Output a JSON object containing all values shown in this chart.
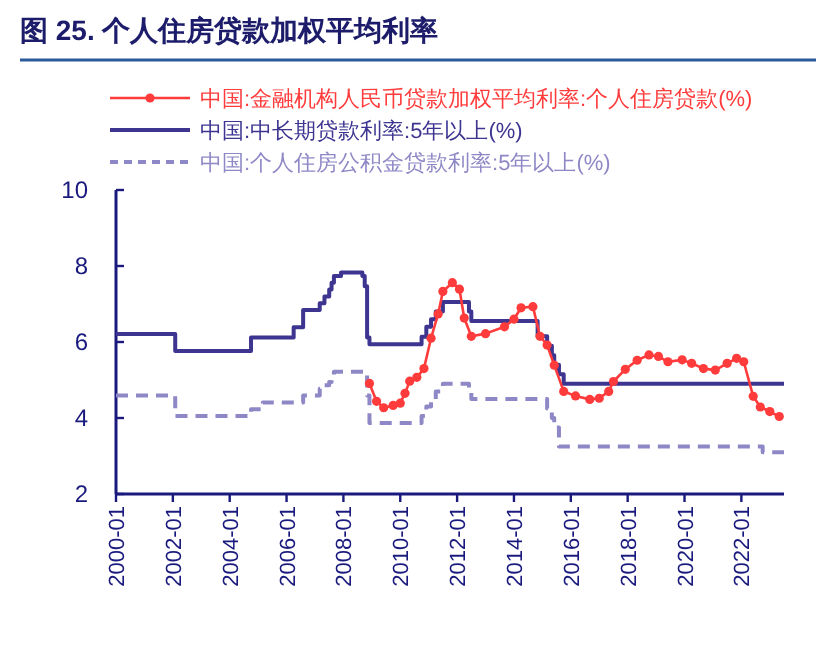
{
  "chart_data": {
    "type": "line",
    "title": "图 25. 个人住房贷款加权平均利率",
    "xlim": [
      "2000-01",
      "2023-07"
    ],
    "ylim": [
      2,
      10
    ],
    "yticks": [
      2,
      4,
      6,
      8,
      10
    ],
    "xticks": [
      "2000-01",
      "2002-01",
      "2004-01",
      "2006-01",
      "2008-01",
      "2010-01",
      "2012-01",
      "2014-01",
      "2016-01",
      "2018-01",
      "2020-01",
      "2022-01"
    ],
    "grid": false,
    "legend": "top",
    "series": [
      {
        "name": "中国:金融机构人民币贷款加权平均利率:个人住房贷款(%)",
        "type": "line",
        "color": "#ff3b3b",
        "marker": "circle",
        "line_style": "solid",
        "x": [
          "2008-12",
          "2009-03",
          "2009-06",
          "2009-10",
          "2010-01",
          "2010-03",
          "2010-05",
          "2010-08",
          "2010-11",
          "2011-02",
          "2011-05",
          "2011-07",
          "2011-11",
          "2012-02",
          "2012-04",
          "2012-07",
          "2013-01",
          "2013-09",
          "2014-01",
          "2014-04",
          "2014-09",
          "2014-12",
          "2015-03",
          "2015-06",
          "2015-10",
          "2016-03",
          "2016-09",
          "2017-01",
          "2017-05",
          "2017-07",
          "2017-12",
          "2018-05",
          "2018-10",
          "2019-02",
          "2019-06",
          "2019-12",
          "2020-04",
          "2020-09",
          "2021-02",
          "2021-07",
          "2021-11",
          "2022-02",
          "2022-06",
          "2022-09",
          "2023-01",
          "2023-05"
        ],
        "values": [
          4.91,
          4.44,
          4.27,
          4.33,
          4.39,
          4.65,
          4.97,
          5.07,
          5.3,
          6.1,
          6.74,
          7.33,
          7.56,
          7.39,
          6.63,
          6.15,
          6.22,
          6.4,
          6.6,
          6.9,
          6.93,
          6.15,
          5.92,
          5.39,
          4.7,
          4.58,
          4.49,
          4.52,
          4.7,
          4.96,
          5.28,
          5.52,
          5.66,
          5.62,
          5.48,
          5.53,
          5.44,
          5.3,
          5.26,
          5.44,
          5.57,
          5.48,
          4.57,
          4.29,
          4.17,
          4.04
        ]
      },
      {
        "name": "中国:中长期贷款利率:5年以上(%)",
        "type": "step",
        "color": "#3d3590",
        "marker": "none",
        "line_style": "solid",
        "x": [
          "2000-01",
          "2002-02",
          "2004-10",
          "2006-04",
          "2006-08",
          "2007-03",
          "2007-05",
          "2007-07",
          "2007-08",
          "2007-09",
          "2007-12",
          "2008-09",
          "2008-10",
          "2008-11",
          "2008-12",
          "2010-10",
          "2010-12",
          "2011-02",
          "2011-04",
          "2011-07",
          "2012-06",
          "2012-07",
          "2014-11",
          "2015-03",
          "2015-05",
          "2015-06",
          "2015-08",
          "2015-10",
          "2023-07"
        ],
        "values": [
          6.21,
          5.76,
          6.12,
          6.39,
          6.84,
          7.02,
          7.2,
          7.38,
          7.56,
          7.74,
          7.83,
          7.74,
          7.47,
          6.12,
          5.94,
          6.14,
          6.4,
          6.6,
          6.8,
          7.05,
          6.8,
          6.55,
          6.15,
          5.9,
          5.65,
          5.4,
          5.15,
          4.9,
          4.9
        ]
      },
      {
        "name": "中国:个人住房公积金贷款利率:5年以上(%)",
        "type": "step",
        "color": "#8e88c6",
        "marker": "none",
        "line_style": "dashed",
        "x": [
          "2000-01",
          "2002-02",
          "2004-10",
          "2005-03",
          "2006-08",
          "2007-03",
          "2007-05",
          "2007-07",
          "2007-08",
          "2007-09",
          "2008-10",
          "2008-11",
          "2008-12",
          "2010-10",
          "2010-12",
          "2011-02",
          "2011-04",
          "2011-07",
          "2012-06",
          "2012-07",
          "2015-03",
          "2015-05",
          "2015-06",
          "2015-08",
          "2022-10",
          "2023-07"
        ],
        "values": [
          4.59,
          4.05,
          4.23,
          4.41,
          4.59,
          4.77,
          4.86,
          4.95,
          5.04,
          5.22,
          5.13,
          4.59,
          3.87,
          4.05,
          4.3,
          4.5,
          4.7,
          4.9,
          4.7,
          4.5,
          4.25,
          4.0,
          3.75,
          3.25,
          3.1,
          3.1
        ]
      }
    ]
  }
}
